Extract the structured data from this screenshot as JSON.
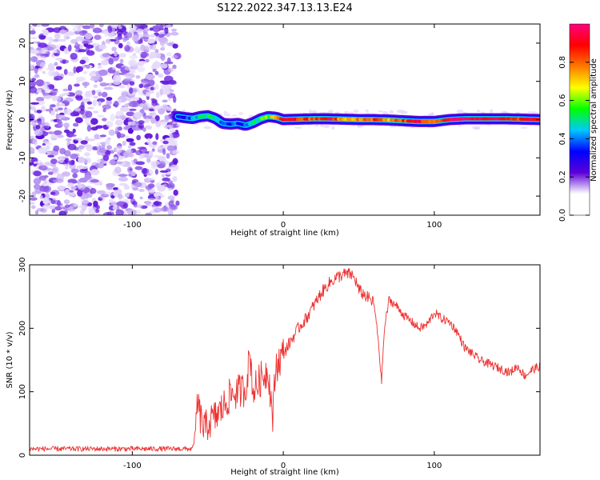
{
  "title": "S122.2022.347.13.13.E24",
  "chart_data": [
    {
      "type": "heatmap",
      "xlabel": "Height of straight line (km)",
      "ylabel": "Frequency (Hz)",
      "xlim": [
        -168,
        170
      ],
      "ylim": [
        -25,
        25
      ],
      "x_ticks": [
        -100,
        0,
        100
      ],
      "y_ticks": [
        -20,
        -10,
        0,
        10,
        20
      ],
      "grid": false,
      "colorbar": {
        "label": "Normalized spectral amplitude",
        "range": [
          0.0,
          1.0
        ],
        "ticks": [
          0.0,
          0.2,
          0.4,
          0.6,
          0.8
        ],
        "colormap": [
          "#ffffff",
          "#ffffff",
          "#5b00d8",
          "#0000ff",
          "#00c8ff",
          "#00ff00",
          "#ffff00",
          "#ff7a00",
          "#ff0000",
          "#ff0080"
        ]
      },
      "noise_region_x": [
        -168,
        -70
      ],
      "ridge": {
        "x": [
          -70,
          -65,
          -60,
          -55,
          -50,
          -45,
          -40,
          -35,
          -30,
          -25,
          -20,
          -15,
          -10,
          -5,
          0,
          10,
          20,
          30,
          40,
          50,
          60,
          70,
          80,
          90,
          100,
          110,
          120,
          130,
          140,
          150,
          160,
          170
        ],
        "y": [
          0.8,
          0.5,
          0.3,
          0.8,
          1.0,
          0.3,
          -1.0,
          -1.2,
          -1.0,
          -1.5,
          -0.8,
          0.2,
          0.8,
          0.6,
          0.0,
          0.1,
          0.2,
          0.2,
          0.1,
          0.0,
          0.0,
          -0.1,
          -0.3,
          -0.5,
          -0.5,
          0.0,
          0.2,
          0.2,
          0.2,
          0.2,
          0.1,
          0.0
        ],
        "amplitude": [
          0.3,
          0.35,
          0.4,
          0.5,
          0.5,
          0.45,
          0.4,
          0.35,
          0.35,
          0.35,
          0.45,
          0.55,
          0.6,
          0.75,
          0.95,
          0.85,
          0.8,
          0.95,
          0.7,
          0.75,
          0.85,
          0.75,
          0.85,
          0.9,
          0.75,
          0.95,
          1.0,
          0.95,
          0.95,
          0.85,
          0.9,
          0.95
        ]
      }
    },
    {
      "type": "line",
      "xlabel": "Height of straight line (km)",
      "ylabel": "SNR (10 * v/v)",
      "xlim": [
        -168,
        170
      ],
      "ylim": [
        0,
        300
      ],
      "x_ticks": [
        -100,
        0,
        100
      ],
      "y_ticks": [
        0,
        100,
        200,
        300
      ],
      "grid": false,
      "series": [
        {
          "color": "#ee3030",
          "x": [
            -168,
            -160,
            -150,
            -140,
            -130,
            -120,
            -110,
            -100,
            -90,
            -80,
            -70,
            -65,
            -60,
            -58,
            -57,
            -55,
            -52,
            -50,
            -45,
            -40,
            -35,
            -30,
            -25,
            -22,
            -20,
            -15,
            -10,
            -7,
            -5,
            0,
            5,
            10,
            15,
            20,
            25,
            30,
            35,
            40,
            45,
            48,
            50,
            55,
            60,
            63,
            65,
            67,
            70,
            75,
            80,
            85,
            90,
            95,
            100,
            105,
            110,
            115,
            120,
            125,
            130,
            140,
            150,
            155,
            160,
            165,
            170
          ],
          "y": [
            10,
            10,
            10,
            10,
            10,
            10,
            10,
            10,
            10,
            10,
            10,
            10,
            10,
            40,
            85,
            60,
            40,
            50,
            60,
            75,
            95,
            100,
            105,
            160,
            100,
            120,
            135,
            60,
            140,
            160,
            180,
            200,
            215,
            235,
            255,
            270,
            280,
            285,
            285,
            275,
            260,
            250,
            240,
            180,
            115,
            200,
            245,
            235,
            220,
            210,
            200,
            205,
            225,
            215,
            210,
            195,
            170,
            160,
            150,
            140,
            130,
            140,
            125,
            135,
            140
          ]
        }
      ]
    }
  ]
}
